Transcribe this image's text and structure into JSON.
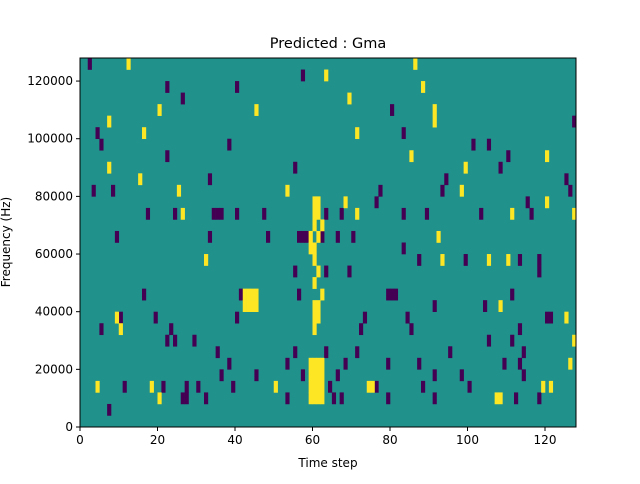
{
  "chart_data": {
    "type": "heatmap",
    "title": "Predicted : Gma",
    "xlabel": "Time step",
    "ylabel": "Frequency (Hz)",
    "xlim": [
      0,
      128
    ],
    "ylim": [
      0,
      128000
    ],
    "xticks": [
      0,
      20,
      40,
      60,
      80,
      100,
      120
    ],
    "xtick_labels": [
      "0",
      "20",
      "40",
      "60",
      "80",
      "100",
      "120"
    ],
    "yticks": [
      0,
      20000,
      40000,
      60000,
      80000,
      100000,
      120000
    ],
    "ytick_labels": [
      "0",
      "20000",
      "40000",
      "60000",
      "80000",
      "100000",
      "120000"
    ],
    "cell_height_hz": 4000,
    "cell_width_steps": 1,
    "colors": {
      "background": "#21918c",
      "high": "#fde725",
      "low": "#440154"
    },
    "background_value": 0,
    "high_cells": [
      [
        12,
        124000
      ],
      [
        86,
        124000
      ],
      [
        63,
        120000
      ],
      [
        88,
        116000
      ],
      [
        69,
        112000
      ],
      [
        20,
        108000
      ],
      [
        45,
        108000
      ],
      [
        7,
        104000
      ],
      [
        91,
        104000
      ],
      [
        16,
        100000
      ],
      [
        71,
        100000
      ],
      [
        85,
        92000
      ],
      [
        7,
        88000
      ],
      [
        15,
        84000
      ],
      [
        25,
        80000
      ],
      [
        53,
        80000
      ],
      [
        68,
        76000
      ],
      [
        26,
        72000
      ],
      [
        71,
        72000
      ],
      [
        32,
        56000
      ],
      [
        60,
        56000
      ],
      [
        60,
        48000
      ],
      [
        42,
        44000
      ],
      [
        43,
        44000
      ],
      [
        44,
        44000
      ],
      [
        45,
        44000
      ],
      [
        42,
        40000
      ],
      [
        43,
        40000
      ],
      [
        44,
        40000
      ],
      [
        45,
        40000
      ],
      [
        60,
        76000
      ],
      [
        61,
        76000
      ],
      [
        60,
        72000
      ],
      [
        61,
        72000
      ],
      [
        60,
        68000
      ],
      [
        62,
        68000
      ],
      [
        59,
        64000
      ],
      [
        61,
        64000
      ],
      [
        59,
        60000
      ],
      [
        60,
        60000
      ],
      [
        61,
        52000
      ],
      [
        62,
        44000
      ],
      [
        60,
        40000
      ],
      [
        61,
        40000
      ],
      [
        60,
        36000
      ],
      [
        61,
        36000
      ],
      [
        60,
        32000
      ],
      [
        9,
        36000
      ],
      [
        10,
        32000
      ],
      [
        4,
        12000
      ],
      [
        18,
        12000
      ],
      [
        20,
        8000
      ],
      [
        50,
        12000
      ],
      [
        74,
        12000
      ],
      [
        75,
        12000
      ],
      [
        59,
        20000
      ],
      [
        60,
        20000
      ],
      [
        61,
        20000
      ],
      [
        62,
        20000
      ],
      [
        59,
        16000
      ],
      [
        60,
        16000
      ],
      [
        61,
        16000
      ],
      [
        62,
        16000
      ],
      [
        59,
        12000
      ],
      [
        60,
        12000
      ],
      [
        61,
        12000
      ],
      [
        62,
        12000
      ],
      [
        59,
        8000
      ],
      [
        60,
        8000
      ],
      [
        61,
        8000
      ],
      [
        62,
        8000
      ],
      [
        107,
        8000
      ],
      [
        108,
        8000
      ],
      [
        119,
        12000
      ],
      [
        121,
        12000
      ],
      [
        126,
        20000
      ],
      [
        127,
        28000
      ],
      [
        125,
        36000
      ],
      [
        108,
        40000
      ],
      [
        111,
        72000
      ],
      [
        120,
        76000
      ],
      [
        127,
        72000
      ],
      [
        92,
        64000
      ],
      [
        93,
        56000
      ],
      [
        105,
        56000
      ],
      [
        110,
        56000
      ],
      [
        98,
        80000
      ],
      [
        120,
        92000
      ],
      [
        99,
        88000
      ],
      [
        91,
        108000
      ]
    ],
    "low_cells": [
      [
        2,
        124000
      ],
      [
        57,
        120000
      ],
      [
        22,
        116000
      ],
      [
        40,
        116000
      ],
      [
        26,
        112000
      ],
      [
        80,
        108000
      ],
      [
        4,
        100000
      ],
      [
        83,
        100000
      ],
      [
        5,
        96000
      ],
      [
        38,
        96000
      ],
      [
        22,
        92000
      ],
      [
        55,
        88000
      ],
      [
        33,
        84000
      ],
      [
        8,
        80000
      ],
      [
        77,
        80000
      ],
      [
        93,
        80000
      ],
      [
        17,
        72000
      ],
      [
        24,
        72000
      ],
      [
        34,
        72000
      ],
      [
        35,
        72000
      ],
      [
        36,
        72000
      ],
      [
        40,
        72000
      ],
      [
        47,
        72000
      ],
      [
        63,
        72000
      ],
      [
        67,
        72000
      ],
      [
        76,
        76000
      ],
      [
        83,
        72000
      ],
      [
        89,
        72000
      ],
      [
        103,
        72000
      ],
      [
        115,
        76000
      ],
      [
        116,
        72000
      ],
      [
        9,
        64000
      ],
      [
        33,
        64000
      ],
      [
        48,
        64000
      ],
      [
        56,
        64000
      ],
      [
        57,
        64000
      ],
      [
        58,
        64000
      ],
      [
        62,
        64000
      ],
      [
        66,
        64000
      ],
      [
        70,
        64000
      ],
      [
        83,
        60000
      ],
      [
        87,
        56000
      ],
      [
        99,
        56000
      ],
      [
        113,
        56000
      ],
      [
        118,
        56000
      ],
      [
        118,
        52000
      ],
      [
        55,
        52000
      ],
      [
        63,
        52000
      ],
      [
        69,
        52000
      ],
      [
        16,
        44000
      ],
      [
        41,
        44000
      ],
      [
        56,
        44000
      ],
      [
        79,
        44000
      ],
      [
        80,
        44000
      ],
      [
        81,
        44000
      ],
      [
        91,
        40000
      ],
      [
        104,
        40000
      ],
      [
        111,
        44000
      ],
      [
        10,
        36000
      ],
      [
        19,
        36000
      ],
      [
        40,
        36000
      ],
      [
        73,
        36000
      ],
      [
        84,
        36000
      ],
      [
        120,
        36000
      ],
      [
        121,
        36000
      ],
      [
        23,
        32000
      ],
      [
        72,
        32000
      ],
      [
        85,
        32000
      ],
      [
        113,
        32000
      ],
      [
        5,
        32000
      ],
      [
        22,
        28000
      ],
      [
        24,
        28000
      ],
      [
        29,
        28000
      ],
      [
        35,
        24000
      ],
      [
        55,
        24000
      ],
      [
        63,
        24000
      ],
      [
        71,
        24000
      ],
      [
        95,
        24000
      ],
      [
        105,
        28000
      ],
      [
        111,
        28000
      ],
      [
        114,
        24000
      ],
      [
        38,
        20000
      ],
      [
        53,
        20000
      ],
      [
        68,
        20000
      ],
      [
        79,
        20000
      ],
      [
        87,
        20000
      ],
      [
        109,
        20000
      ],
      [
        113,
        20000
      ],
      [
        36,
        16000
      ],
      [
        45,
        16000
      ],
      [
        57,
        16000
      ],
      [
        66,
        16000
      ],
      [
        91,
        16000
      ],
      [
        98,
        16000
      ],
      [
        114,
        16000
      ],
      [
        11,
        12000
      ],
      [
        21,
        12000
      ],
      [
        27,
        12000
      ],
      [
        30,
        12000
      ],
      [
        39,
        12000
      ],
      [
        64,
        12000
      ],
      [
        76,
        12000
      ],
      [
        88,
        12000
      ],
      [
        100,
        12000
      ],
      [
        26,
        8000
      ],
      [
        27,
        8000
      ],
      [
        32,
        8000
      ],
      [
        53,
        8000
      ],
      [
        65,
        8000
      ],
      [
        67,
        8000
      ],
      [
        79,
        8000
      ],
      [
        91,
        8000
      ],
      [
        112,
        8000
      ],
      [
        118,
        8000
      ],
      [
        7,
        4000
      ],
      [
        127,
        104000
      ],
      [
        101,
        96000
      ],
      [
        110,
        92000
      ],
      [
        105,
        96000
      ],
      [
        94,
        84000
      ],
      [
        108,
        88000
      ],
      [
        3,
        80000
      ],
      [
        125,
        84000
      ],
      [
        126,
        80000
      ]
    ]
  }
}
